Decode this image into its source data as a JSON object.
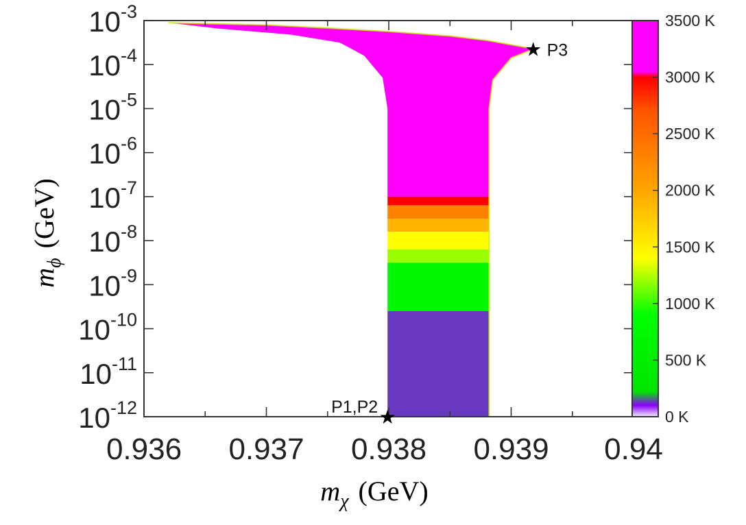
{
  "chart_data": {
    "type": "heatmap",
    "title": "",
    "xlabel": {
      "symbol": "m",
      "subscript": "χ",
      "unit": "(GeV)"
    },
    "ylabel": {
      "symbol": "m",
      "subscript": "ϕ",
      "unit": "(GeV)"
    },
    "xlim": [
      0.936,
      0.94
    ],
    "ylim_log10": [
      -12,
      -3
    ],
    "y_scale": "log",
    "x_ticks": [
      "0.936",
      "0.937",
      "0.938",
      "0.939",
      "0.94"
    ],
    "x_tick_values": [
      0.936,
      0.937,
      0.938,
      0.939,
      0.94
    ],
    "y_ticks": [
      {
        "base": "10",
        "exp": "-3",
        "value": -3
      },
      {
        "base": "10",
        "exp": "-4",
        "value": -4
      },
      {
        "base": "10",
        "exp": "-5",
        "value": -5
      },
      {
        "base": "10",
        "exp": "-6",
        "value": -6
      },
      {
        "base": "10",
        "exp": "-7",
        "value": -7
      },
      {
        "base": "10",
        "exp": "-8",
        "value": -8
      },
      {
        "base": "10",
        "exp": "-9",
        "value": -9
      },
      {
        "base": "10",
        "exp": "-10",
        "value": -10
      },
      {
        "base": "10",
        "exp": "-11",
        "value": -11
      },
      {
        "base": "10",
        "exp": "-12",
        "value": -12
      }
    ],
    "colorbar": {
      "range_K": [
        0,
        3500
      ],
      "labels": [
        "3500 K",
        "3000 K",
        "2500 K",
        "2000 K",
        "1500 K",
        "1000 K",
        "500 K",
        "0 K"
      ],
      "label_values": [
        3500,
        3000,
        2500,
        2000,
        1500,
        1000,
        500,
        0
      ],
      "color_stops": [
        {
          "value": 0,
          "color": "#f4eeff"
        },
        {
          "value": 100,
          "color": "#8b00ff"
        },
        {
          "value": 220,
          "color": "#00e400"
        },
        {
          "value": 900,
          "color": "#00ff00"
        },
        {
          "value": 1400,
          "color": "#ffff00"
        },
        {
          "value": 2000,
          "color": "#ffa500"
        },
        {
          "value": 2700,
          "color": "#ff5500"
        },
        {
          "value": 3000,
          "color": "#ff0000"
        },
        {
          "value": 3050,
          "color": "#ff00ff"
        },
        {
          "value": 3500,
          "color": "#ff00ff"
        }
      ]
    },
    "region": {
      "band_x": [
        0.93799,
        0.93882
      ],
      "upper_edge_points": [
        [
          0.9362,
          -3.05
        ],
        [
          0.937,
          -3.1
        ],
        [
          0.9375,
          -3.17
        ],
        [
          0.938,
          -3.25
        ],
        [
          0.9385,
          -3.35
        ],
        [
          0.9388,
          -3.45
        ],
        [
          0.9391,
          -3.6
        ],
        [
          0.93918,
          -3.65
        ]
      ],
      "left_edge_points": [
        [
          0.9362,
          -3.05
        ],
        [
          0.9366,
          -3.18
        ],
        [
          0.9372,
          -3.32
        ],
        [
          0.9376,
          -3.5
        ],
        [
          0.9378,
          -3.8
        ],
        [
          0.93795,
          -4.3
        ],
        [
          0.93799,
          -5.0
        ],
        [
          0.93799,
          -12
        ]
      ],
      "right_edge_points": [
        [
          0.93918,
          -3.65
        ],
        [
          0.939,
          -3.85
        ],
        [
          0.93885,
          -4.35
        ],
        [
          0.93882,
          -5.0
        ],
        [
          0.93882,
          -12
        ]
      ],
      "temperature_bands": [
        {
          "logm_from": -7.0,
          "logm_to": -3.0,
          "T_K": 3500
        },
        {
          "logm_from": -7.2,
          "logm_to": -7.0,
          "T_K": 3000
        },
        {
          "logm_from": -7.5,
          "logm_to": -7.2,
          "T_K": 2300
        },
        {
          "logm_from": -7.8,
          "logm_to": -7.5,
          "T_K": 1900
        },
        {
          "logm_from": -8.2,
          "logm_to": -7.8,
          "T_K": 1400
        },
        {
          "logm_from": -8.5,
          "logm_to": -8.2,
          "T_K": 1200
        },
        {
          "logm_from": -9.6,
          "logm_to": -8.5,
          "T_K": 700
        },
        {
          "logm_from": -12.0,
          "logm_to": -9.6,
          "T_K": 130
        }
      ]
    },
    "annotations": [
      {
        "label": "P3",
        "x": 0.93918,
        "logm": -3.65,
        "marker": "★"
      },
      {
        "label": "P1,P2",
        "x": 0.93799,
        "logm": -12.0,
        "marker": "★"
      }
    ]
  }
}
